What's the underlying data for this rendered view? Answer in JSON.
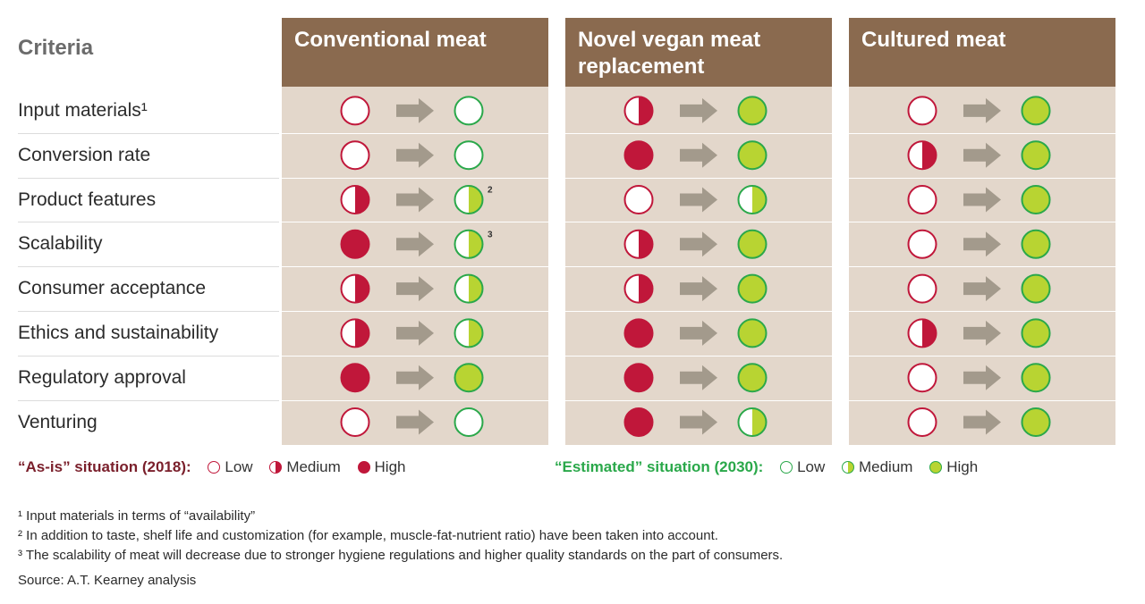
{
  "criteria_header": "Criteria",
  "columns": [
    "Conventional meat",
    "Novel vegan meat replacement",
    "Cultured meat"
  ],
  "colors": {
    "header_bg": "#8a6a4f",
    "panel_bg": "#e3d7cb",
    "as_is_red": "#c0173a",
    "estimated_green": "#b8d432",
    "estimated_border": "#2aa84a",
    "arrow": "#a39a8c"
  },
  "chart_data": {
    "type": "table",
    "levels": [
      "Low",
      "Medium",
      "High"
    ],
    "rows": [
      {
        "criterion": "Input materials¹",
        "as_is": [
          "Low",
          "Medium",
          "Low"
        ],
        "estimated": [
          "Low",
          "High",
          "High"
        ],
        "notes": [
          "",
          "",
          ""
        ]
      },
      {
        "criterion": "Conversion rate",
        "as_is": [
          "Low",
          "High",
          "Medium"
        ],
        "estimated": [
          "Low",
          "High",
          "High"
        ],
        "notes": [
          "",
          "",
          ""
        ]
      },
      {
        "criterion": "Product features",
        "as_is": [
          "Medium",
          "Low",
          "Low"
        ],
        "estimated": [
          "Medium",
          "Medium",
          "High"
        ],
        "notes": [
          "2",
          "",
          ""
        ]
      },
      {
        "criterion": "Scalability",
        "as_is": [
          "High",
          "Medium",
          "Low"
        ],
        "estimated": [
          "Medium",
          "High",
          "High"
        ],
        "notes": [
          "3",
          "",
          ""
        ]
      },
      {
        "criterion": "Consumer acceptance",
        "as_is": [
          "Medium",
          "Medium",
          "Low"
        ],
        "estimated": [
          "Medium",
          "High",
          "High"
        ],
        "notes": [
          "",
          "",
          ""
        ]
      },
      {
        "criterion": "Ethics and sustainability",
        "as_is": [
          "Medium",
          "High",
          "Medium"
        ],
        "estimated": [
          "Medium",
          "High",
          "High"
        ],
        "notes": [
          "",
          "",
          ""
        ]
      },
      {
        "criterion": "Regulatory approval",
        "as_is": [
          "High",
          "High",
          "Low"
        ],
        "estimated": [
          "High",
          "High",
          "High"
        ],
        "notes": [
          "",
          "",
          ""
        ]
      },
      {
        "criterion": "Venturing",
        "as_is": [
          "Low",
          "High",
          "Low"
        ],
        "estimated": [
          "Low",
          "Medium",
          "High"
        ],
        "notes": [
          "",
          "",
          ""
        ]
      }
    ]
  },
  "legend": {
    "as_is_label": "“As-is” situation (2018):",
    "estimated_label": "“Estimated” situation (2030):",
    "low": "Low",
    "medium": "Medium",
    "high": "High"
  },
  "footnotes": [
    "¹ Input materials in terms of “availability”",
    "² In addition to taste, shelf life and customization (for example, muscle-fat-nutrient ratio) have been taken into account.",
    "³ The scalability of meat will decrease due to stronger hygiene regulations and higher quality standards on the part of consumers.",
    "Source: A.T. Kearney analysis"
  ]
}
